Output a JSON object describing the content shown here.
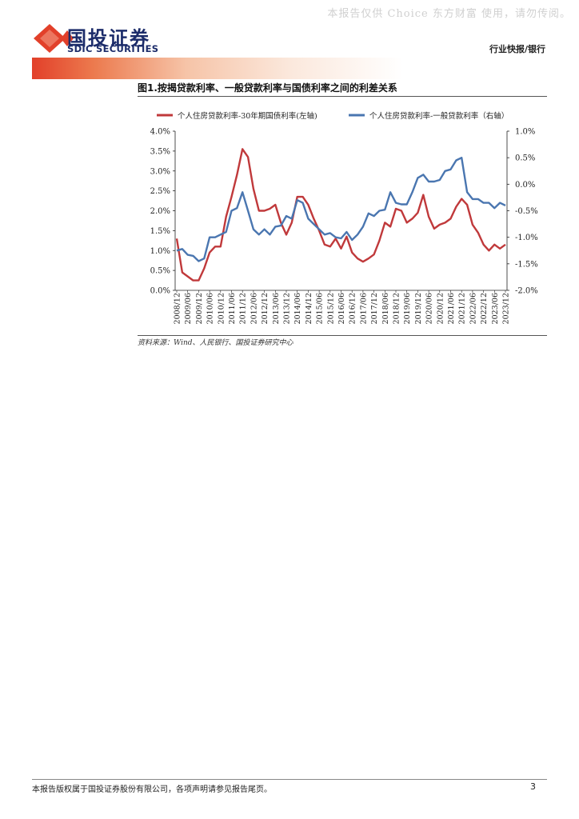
{
  "watermark": "本报告仅供 Choice 东方财富 使用，请勿传阅。",
  "brand": {
    "name_cn": "国投证券",
    "name_en": "SDIC SECURITIES",
    "red": "#e2402a",
    "navy": "#1c2c6a"
  },
  "header": {
    "category": "行业快报/银行"
  },
  "figure": {
    "title": "图1.按揭贷款利率、一般贷款利率与国债利率之间的利差关系",
    "source": "资料来源：Wind、人民银行、国投证券研究中心"
  },
  "footer": {
    "disclaimer": "本报告版权属于国投证券股份有限公司，各项声明请参见报告尾页。",
    "page": "3"
  },
  "chart_data": {
    "type": "line",
    "title": "",
    "x": [
      "2008/12",
      "2009/03",
      "2009/06",
      "2009/09",
      "2009/12",
      "2010/03",
      "2010/06",
      "2010/09",
      "2010/12",
      "2011/03",
      "2011/06",
      "2011/09",
      "2011/12",
      "2012/03",
      "2012/06",
      "2012/09",
      "2012/12",
      "2013/03",
      "2013/06",
      "2013/09",
      "2013/12",
      "2014/03",
      "2014/06",
      "2014/09",
      "2014/12",
      "2015/03",
      "2015/06",
      "2015/09",
      "2015/12",
      "2016/03",
      "2016/06",
      "2016/09",
      "2016/12",
      "2017/03",
      "2017/06",
      "2017/09",
      "2017/12",
      "2018/03",
      "2018/06",
      "2018/09",
      "2018/12",
      "2019/03",
      "2019/06",
      "2019/09",
      "2019/12",
      "2020/03",
      "2020/06",
      "2020/09",
      "2020/12",
      "2021/03",
      "2021/06",
      "2021/09",
      "2021/12",
      "2022/03",
      "2022/06",
      "2022/09",
      "2022/12",
      "2023/03",
      "2023/06",
      "2023/09",
      "2023/12"
    ],
    "tick_labels": [
      "2008/12",
      "2009/06",
      "2009/12",
      "2010/06",
      "2010/12",
      "2011/06",
      "2011/12",
      "2012/06",
      "2012/12",
      "2013/06",
      "2013/12",
      "2014/06",
      "2014/12",
      "2015/06",
      "2015/12",
      "2016/06",
      "2016/12",
      "2017/06",
      "2017/12",
      "2018/06",
      "2018/12",
      "2019/06",
      "2019/12",
      "2020/06",
      "2020/12",
      "2021/06",
      "2021/12",
      "2022/06",
      "2022/12",
      "2023/06",
      "2023/12"
    ],
    "y_left": {
      "ticks": [
        "0.0%",
        "0.5%",
        "1.0%",
        "1.5%",
        "2.0%",
        "2.5%",
        "3.0%",
        "3.5%",
        "4.0%"
      ],
      "ylim": [
        0,
        4
      ]
    },
    "y_right": {
      "ticks": [
        "-2.0%",
        "-1.5%",
        "-1.0%",
        "-0.5%",
        "0.0%",
        "0.5%",
        "1.0%"
      ],
      "ylim": [
        -2,
        1
      ]
    },
    "legend_position": "top",
    "series": [
      {
        "name": "个人住房贷款利率-30年期国债利率(左轴)",
        "axis": "left",
        "color": "#c0393b",
        "values": [
          1.3,
          0.45,
          0.35,
          0.25,
          0.25,
          0.55,
          0.95,
          1.1,
          1.1,
          1.85,
          2.35,
          2.9,
          3.55,
          3.35,
          2.55,
          2.0,
          2.0,
          2.05,
          2.15,
          1.7,
          1.4,
          1.7,
          2.35,
          2.35,
          2.15,
          1.8,
          1.5,
          1.15,
          1.1,
          1.3,
          1.05,
          1.35,
          0.95,
          0.8,
          0.72,
          0.8,
          0.9,
          1.25,
          1.7,
          1.6,
          2.05,
          2.0,
          1.7,
          1.8,
          1.95,
          2.4,
          1.85,
          1.55,
          1.65,
          1.7,
          1.8,
          2.1,
          2.3,
          2.15,
          1.65,
          1.45,
          1.15,
          1.0,
          1.15,
          1.05,
          1.15
        ]
      },
      {
        "name": "个人住房贷款利率-一般贷款利率（右轴）",
        "axis": "right",
        "color": "#4a76b0",
        "values": [
          -1.25,
          -1.22,
          -1.33,
          -1.35,
          -1.45,
          -1.4,
          -1.0,
          -1.0,
          -0.95,
          -0.9,
          -0.5,
          -0.45,
          -0.15,
          -0.5,
          -0.85,
          -0.95,
          -0.85,
          -0.95,
          -0.8,
          -0.78,
          -0.6,
          -0.65,
          -0.3,
          -0.35,
          -0.65,
          -0.75,
          -0.85,
          -0.95,
          -0.92,
          -1.0,
          -1.02,
          -0.9,
          -1.05,
          -0.95,
          -0.8,
          -0.55,
          -0.6,
          -0.5,
          -0.48,
          -0.15,
          -0.35,
          -0.38,
          -0.38,
          -0.15,
          0.12,
          0.18,
          0.05,
          0.05,
          0.08,
          0.25,
          0.28,
          0.45,
          0.5,
          -0.15,
          -0.28,
          -0.28,
          -0.35,
          -0.35,
          -0.45,
          -0.35,
          -0.4
        ]
      }
    ]
  }
}
